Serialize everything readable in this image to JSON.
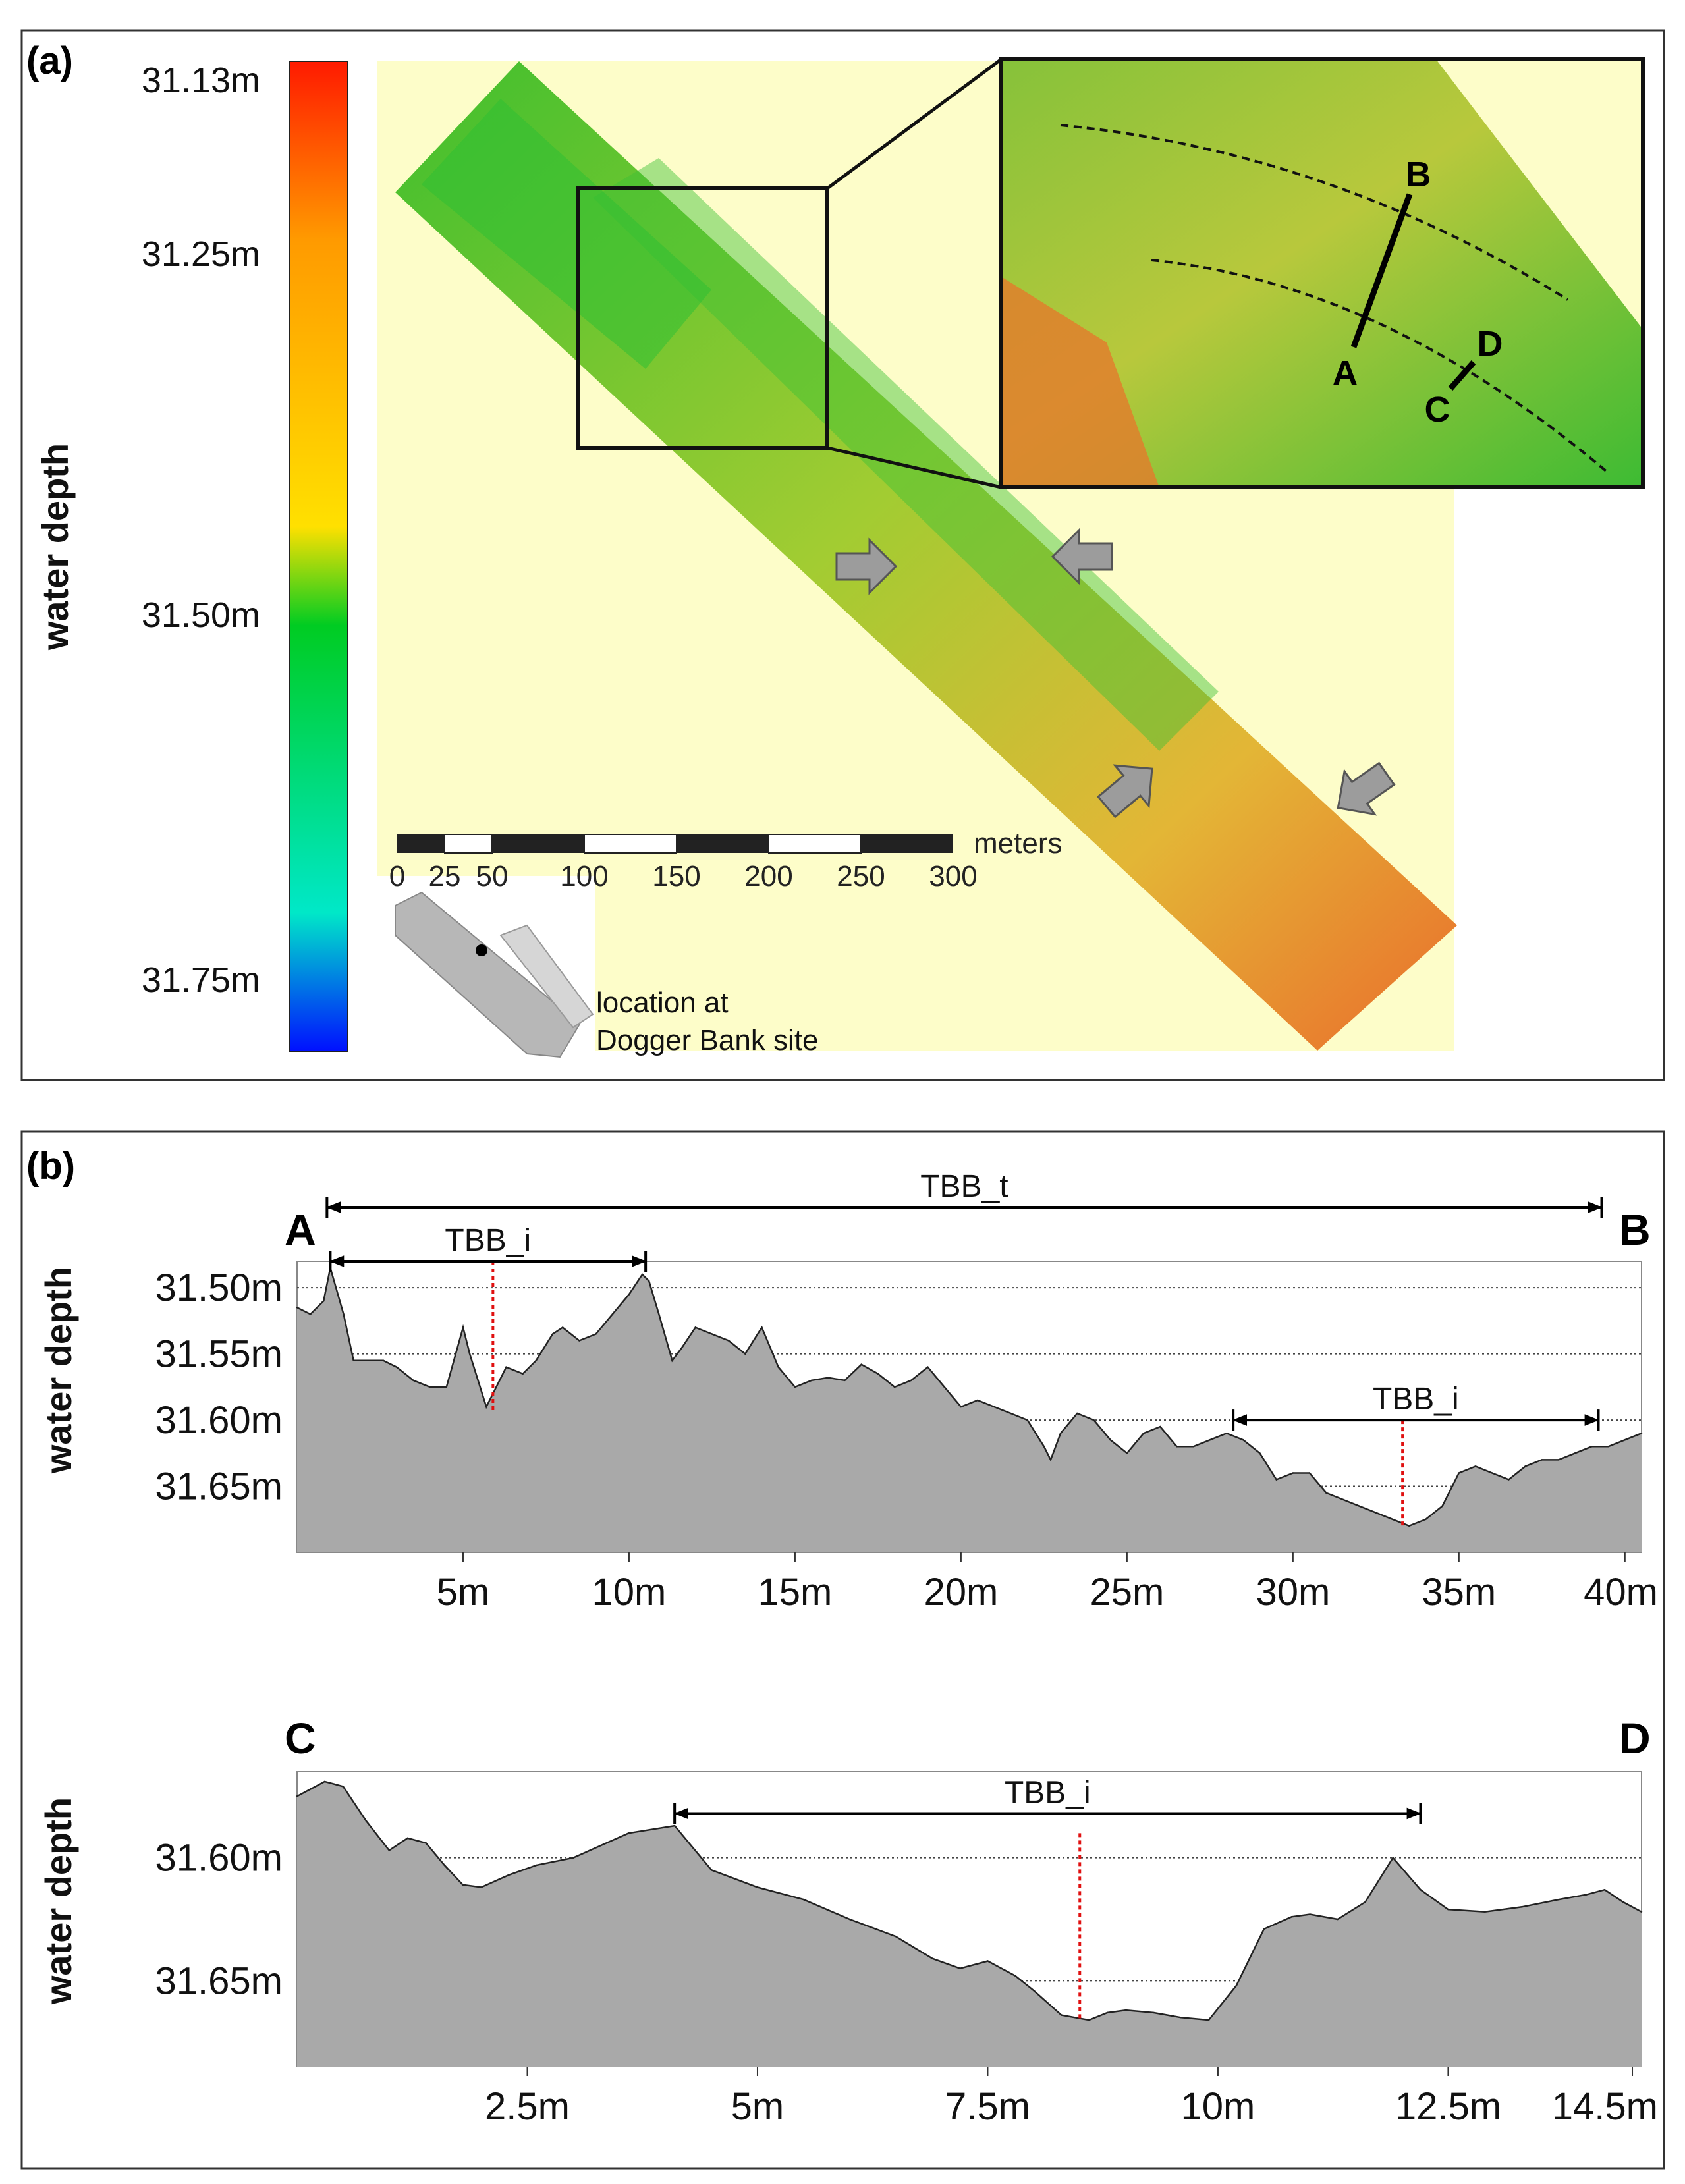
{
  "panel_a": {
    "label": "(a)",
    "colorbar": {
      "title": "water depth",
      "tick_labels": [
        "31.13m",
        "31.25m",
        "31.50m",
        "31.75m"
      ],
      "tick_values": [
        31.13,
        31.25,
        31.5,
        31.75
      ],
      "colors": [
        "#ff1a00",
        "#ff9a00",
        "#ffe000",
        "#00cc22",
        "#00e8c8",
        "#0010ff"
      ]
    },
    "scale_bar": {
      "unit": "meters",
      "tick_labels": [
        "0",
        "25",
        "50",
        "100",
        "150",
        "200",
        "250",
        "300"
      ],
      "tick_values": [
        0,
        25,
        50,
        100,
        150,
        200,
        250,
        300
      ]
    },
    "location_caption": [
      "location at",
      "Dogger Bank site"
    ],
    "profile_points": {
      "A": "A",
      "B": "B",
      "C": "C",
      "D": "D"
    }
  },
  "panel_b": {
    "label": "(b)"
  },
  "chart_data": [
    {
      "type": "area",
      "title": "",
      "start_label": "A",
      "end_label": "B",
      "ylabel": "water depth",
      "xlabel": "",
      "xlim": [
        0,
        40.5
      ],
      "ylim": [
        31.48,
        31.7
      ],
      "y_inverted": true,
      "grid": true,
      "x_ticks": [
        5,
        10,
        15,
        20,
        25,
        30,
        35,
        40
      ],
      "x_tick_labels": [
        "5m",
        "10m",
        "15m",
        "20m",
        "25m",
        "30m",
        "35m",
        "40m"
      ],
      "y_ticks": [
        31.5,
        31.55,
        31.6,
        31.65
      ],
      "y_tick_labels": [
        "31.50m",
        "31.55m",
        "31.60m",
        "31.65m"
      ],
      "x": [
        0.0,
        0.4,
        0.8,
        1.0,
        1.4,
        1.7,
        2.0,
        2.6,
        3.0,
        3.5,
        4.0,
        4.5,
        5.0,
        5.2,
        5.7,
        6.0,
        6.3,
        6.8,
        7.2,
        7.7,
        8.0,
        8.5,
        9.0,
        9.5,
        10.0,
        10.4,
        10.6,
        10.9,
        11.3,
        11.6,
        12.0,
        12.5,
        13.0,
        13.5,
        14.0,
        14.5,
        15.0,
        15.5,
        16.0,
        16.5,
        17.0,
        17.5,
        18.0,
        18.5,
        19.0,
        19.5,
        20.0,
        20.5,
        21.0,
        21.5,
        22.0,
        22.5,
        22.7,
        23.0,
        23.5,
        24.0,
        24.5,
        25.0,
        25.5,
        26.0,
        26.5,
        27.0,
        27.5,
        28.0,
        28.5,
        29.0,
        29.5,
        30.0,
        30.5,
        31.0,
        31.5,
        32.0,
        32.5,
        33.0,
        33.5,
        34.0,
        34.5,
        35.0,
        35.5,
        36.0,
        36.5,
        37.0,
        37.5,
        38.0,
        38.5,
        39.0,
        39.5,
        40.0,
        40.5
      ],
      "values": [
        31.515,
        31.52,
        31.51,
        31.485,
        31.52,
        31.555,
        31.555,
        31.555,
        31.56,
        31.57,
        31.575,
        31.575,
        31.53,
        31.55,
        31.59,
        31.575,
        31.56,
        31.565,
        31.555,
        31.535,
        31.53,
        31.54,
        31.535,
        31.52,
        31.505,
        31.49,
        31.495,
        31.52,
        31.555,
        31.545,
        31.53,
        31.535,
        31.54,
        31.55,
        31.53,
        31.56,
        31.575,
        31.57,
        31.568,
        31.57,
        31.558,
        31.565,
        31.575,
        31.57,
        31.56,
        31.575,
        31.59,
        31.585,
        31.59,
        31.595,
        31.6,
        31.62,
        31.63,
        31.61,
        31.595,
        31.6,
        31.615,
        31.625,
        31.61,
        31.605,
        31.62,
        31.62,
        31.615,
        31.61,
        31.615,
        31.625,
        31.645,
        31.64,
        31.64,
        31.655,
        31.66,
        31.665,
        31.67,
        31.675,
        31.68,
        31.675,
        31.665,
        31.64,
        31.635,
        31.64,
        31.645,
        31.635,
        31.63,
        31.63,
        31.625,
        31.62,
        31.62,
        31.615,
        31.61
      ],
      "annotations": [
        {
          "text": "TBB_t",
          "kind": "span",
          "x_from": 0.9,
          "x_to": 39.3,
          "y_level": "top"
        },
        {
          "text": "TBB_i",
          "kind": "span",
          "x_from": 1.0,
          "x_to": 10.5,
          "y_level": "31.48"
        },
        {
          "text": "TBB_i",
          "kind": "span",
          "x_from": 28.2,
          "x_to": 39.2,
          "y_level": "31.60"
        }
      ],
      "reference_lines": [
        {
          "x": 5.9,
          "y_from": 31.48,
          "y_to": 31.595,
          "style": "red-dotted"
        },
        {
          "x": 33.3,
          "y_from": 31.6,
          "y_to": 31.68,
          "style": "red-dotted"
        }
      ]
    },
    {
      "type": "area",
      "title": "",
      "start_label": "C",
      "end_label": "D",
      "ylabel": "water depth",
      "xlabel": "",
      "xlim": [
        0,
        14.6
      ],
      "ylim": [
        31.565,
        31.685
      ],
      "y_inverted": true,
      "grid": true,
      "x_ticks": [
        2.5,
        5,
        7.5,
        10,
        12.5,
        14.5
      ],
      "x_tick_labels": [
        "2.5m",
        "5m",
        "7.5m",
        "10m",
        "12.5m",
        "14.5m"
      ],
      "y_ticks": [
        31.6,
        31.65
      ],
      "y_tick_labels": [
        "31.60m",
        "31.65m"
      ],
      "x": [
        0.0,
        0.15,
        0.3,
        0.5,
        0.75,
        1.0,
        1.2,
        1.4,
        1.6,
        1.8,
        2.0,
        2.3,
        2.6,
        3.0,
        3.3,
        3.6,
        4.1,
        4.5,
        5.0,
        5.5,
        6.0,
        6.5,
        6.9,
        7.2,
        7.5,
        7.8,
        8.0,
        8.3,
        8.6,
        8.8,
        9.0,
        9.3,
        9.6,
        9.9,
        10.2,
        10.5,
        10.8,
        11.0,
        11.3,
        11.6,
        11.9,
        12.2,
        12.5,
        12.9,
        13.3,
        13.7,
        14.0,
        14.2,
        14.4,
        14.6
      ],
      "values": [
        31.575,
        31.572,
        31.569,
        31.571,
        31.585,
        31.597,
        31.592,
        31.594,
        31.603,
        31.611,
        31.612,
        31.607,
        31.603,
        31.6,
        31.595,
        31.59,
        31.587,
        31.605,
        31.612,
        31.617,
        31.625,
        31.632,
        31.641,
        31.645,
        31.642,
        31.648,
        31.654,
        31.664,
        31.666,
        31.663,
        31.662,
        31.663,
        31.665,
        31.666,
        31.652,
        31.629,
        31.624,
        31.623,
        31.625,
        31.618,
        31.6,
        31.613,
        31.621,
        31.622,
        31.62,
        31.617,
        31.615,
        31.613,
        31.618,
        31.622
      ],
      "annotations": [
        {
          "text": "TBB_i",
          "kind": "span",
          "x_from": 4.1,
          "x_to": 12.2,
          "y_level": "31.582"
        }
      ],
      "reference_lines": [
        {
          "x": 8.5,
          "y_from": 31.59,
          "y_to": 31.666,
          "style": "red-dotted"
        }
      ]
    }
  ]
}
